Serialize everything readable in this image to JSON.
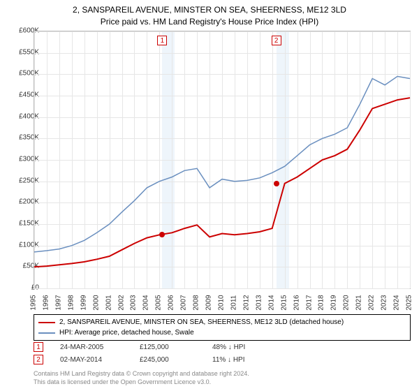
{
  "title": {
    "line1": "2, SANSPAREIL AVENUE, MINSTER ON SEA, SHEERNESS, ME12 3LD",
    "line2": "Price paid vs. HM Land Registry's House Price Index (HPI)"
  },
  "chart": {
    "type": "line",
    "ylim": [
      0,
      600000
    ],
    "ytick_step": 50000,
    "ytick_labels": [
      "£0",
      "£50K",
      "£100K",
      "£150K",
      "£200K",
      "£250K",
      "£300K",
      "£350K",
      "£400K",
      "£450K",
      "£500K",
      "£550K",
      "£600K"
    ],
    "x_years": [
      1995,
      1996,
      1997,
      1998,
      1999,
      2000,
      2001,
      2002,
      2003,
      2004,
      2005,
      2006,
      2007,
      2008,
      2009,
      2010,
      2011,
      2012,
      2013,
      2014,
      2015,
      2016,
      2017,
      2018,
      2019,
      2020,
      2021,
      2022,
      2023,
      2024,
      2025
    ],
    "highlight_bands": [
      {
        "from_year": 2005.23,
        "to_year": 2006.23
      },
      {
        "from_year": 2014.33,
        "to_year": 2015.33
      }
    ],
    "series": [
      {
        "name": "red",
        "color": "#cc0000",
        "width": 2,
        "values": [
          50000,
          52000,
          55000,
          58000,
          62000,
          68000,
          75000,
          90000,
          105000,
          118000,
          125000,
          130000,
          140000,
          148000,
          120000,
          128000,
          125000,
          128000,
          132000,
          140000,
          245000,
          260000,
          280000,
          300000,
          310000,
          325000,
          370000,
          420000,
          430000,
          440000,
          445000
        ]
      },
      {
        "name": "blue",
        "color": "#6a8fbf",
        "width": 1.5,
        "values": [
          85000,
          88000,
          92000,
          100000,
          112000,
          130000,
          150000,
          178000,
          205000,
          235000,
          250000,
          260000,
          275000,
          280000,
          235000,
          255000,
          250000,
          252000,
          258000,
          270000,
          285000,
          310000,
          335000,
          350000,
          360000,
          375000,
          430000,
          490000,
          475000,
          495000,
          490000
        ]
      }
    ],
    "sale_points": [
      {
        "n": "1",
        "year": 2005.23,
        "price": 125000,
        "color": "#cc0000"
      },
      {
        "n": "2",
        "year": 2014.33,
        "price": 245000,
        "color": "#cc0000"
      }
    ],
    "background_color": "#ffffff",
    "grid_color": "#e6e6e6",
    "band_color": "#cfe2f3"
  },
  "legend": {
    "items": [
      {
        "color": "#cc0000",
        "label": "2, SANSPAREIL AVENUE, MINSTER ON SEA, SHEERNESS, ME12 3LD (detached house)"
      },
      {
        "color": "#6a8fbf",
        "label": "HPI: Average price, detached house, Swale"
      }
    ]
  },
  "events": [
    {
      "n": "1",
      "color": "#cc0000",
      "date": "24-MAR-2005",
      "price": "£125,000",
      "pct": "48% ↓ HPI"
    },
    {
      "n": "2",
      "color": "#cc0000",
      "date": "02-MAY-2014",
      "price": "£245,000",
      "pct": "11% ↓ HPI"
    }
  ],
  "attribution": {
    "line1": "Contains HM Land Registry data © Crown copyright and database right 2024.",
    "line2": "This data is licensed under the Open Government Licence v3.0."
  }
}
